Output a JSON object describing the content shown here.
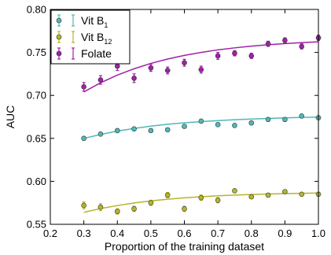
{
  "chart_data": {
    "type": "scatter",
    "xlabel": "Proportion of the training dataset",
    "ylabel": "AUC",
    "xlim": [
      0.2,
      1.0
    ],
    "ylim": [
      0.55,
      0.8
    ],
    "xticks": [
      "0.2",
      "0.3",
      "0.4",
      "0.5",
      "0.6",
      "0.7",
      "0.8",
      "0.9",
      "1.0"
    ],
    "yticks": [
      "0.55",
      "0.60",
      "0.65",
      "0.70",
      "0.75",
      "0.80"
    ],
    "legend_position": "top-left",
    "series": [
      {
        "name": "Vit B",
        "subscript": "1",
        "color": "#4fb8b8",
        "x": [
          0.3,
          0.35,
          0.4,
          0.45,
          0.5,
          0.55,
          0.6,
          0.65,
          0.7,
          0.75,
          0.8,
          0.85,
          0.9,
          0.95,
          1.0
        ],
        "y": [
          0.65,
          0.655,
          0.659,
          0.661,
          0.659,
          0.66,
          0.664,
          0.67,
          0.666,
          0.665,
          0.668,
          0.672,
          0.672,
          0.676,
          0.674
        ],
        "err": [
          0.002,
          0.002,
          0.002,
          0.002,
          0.002,
          0.002,
          0.002,
          0.002,
          0.002,
          0.002,
          0.002,
          0.002,
          0.002,
          0.002,
          0.002
        ],
        "fit": [
          0.65,
          0.6545,
          0.6585,
          0.6615,
          0.6642,
          0.6664,
          0.6681,
          0.6695,
          0.6707,
          0.6717,
          0.6725,
          0.6732,
          0.6738,
          0.6743,
          0.6748
        ]
      },
      {
        "name": "Vit B",
        "subscript": "12",
        "color": "#b5b52a",
        "x": [
          0.3,
          0.35,
          0.4,
          0.45,
          0.5,
          0.55,
          0.6,
          0.65,
          0.7,
          0.75,
          0.8,
          0.85,
          0.9,
          0.95,
          1.0
        ],
        "y": [
          0.572,
          0.57,
          0.565,
          0.568,
          0.575,
          0.584,
          0.568,
          0.581,
          0.578,
          0.589,
          0.582,
          0.584,
          0.588,
          0.585,
          0.585
        ],
        "err": [
          0.004,
          0.004,
          0.003,
          0.003,
          0.003,
          0.003,
          0.003,
          0.003,
          0.003,
          0.002,
          0.002,
          0.002,
          0.002,
          0.002,
          0.002
        ],
        "fit": [
          0.564,
          0.5683,
          0.5718,
          0.5748,
          0.5772,
          0.5792,
          0.5808,
          0.5821,
          0.5832,
          0.584,
          0.5847,
          0.5852,
          0.5857,
          0.5861,
          0.5864
        ]
      },
      {
        "name": "Folate",
        "subscript": "",
        "color": "#a020a8",
        "x": [
          0.3,
          0.35,
          0.4,
          0.45,
          0.5,
          0.55,
          0.6,
          0.65,
          0.7,
          0.75,
          0.8,
          0.85,
          0.9,
          0.95,
          1.0
        ],
        "y": [
          0.71,
          0.718,
          0.734,
          0.72,
          0.732,
          0.729,
          0.738,
          0.73,
          0.746,
          0.749,
          0.746,
          0.76,
          0.764,
          0.757,
          0.767
        ],
        "err": [
          0.005,
          0.005,
          0.005,
          0.005,
          0.004,
          0.004,
          0.004,
          0.004,
          0.004,
          0.003,
          0.003,
          0.003,
          0.003,
          0.003,
          0.003
        ],
        "fit": [
          0.704,
          0.7147,
          0.7236,
          0.731,
          0.7372,
          0.7423,
          0.7465,
          0.75,
          0.753,
          0.7553,
          0.7573,
          0.7589,
          0.7603,
          0.7614,
          0.7623
        ]
      }
    ]
  }
}
